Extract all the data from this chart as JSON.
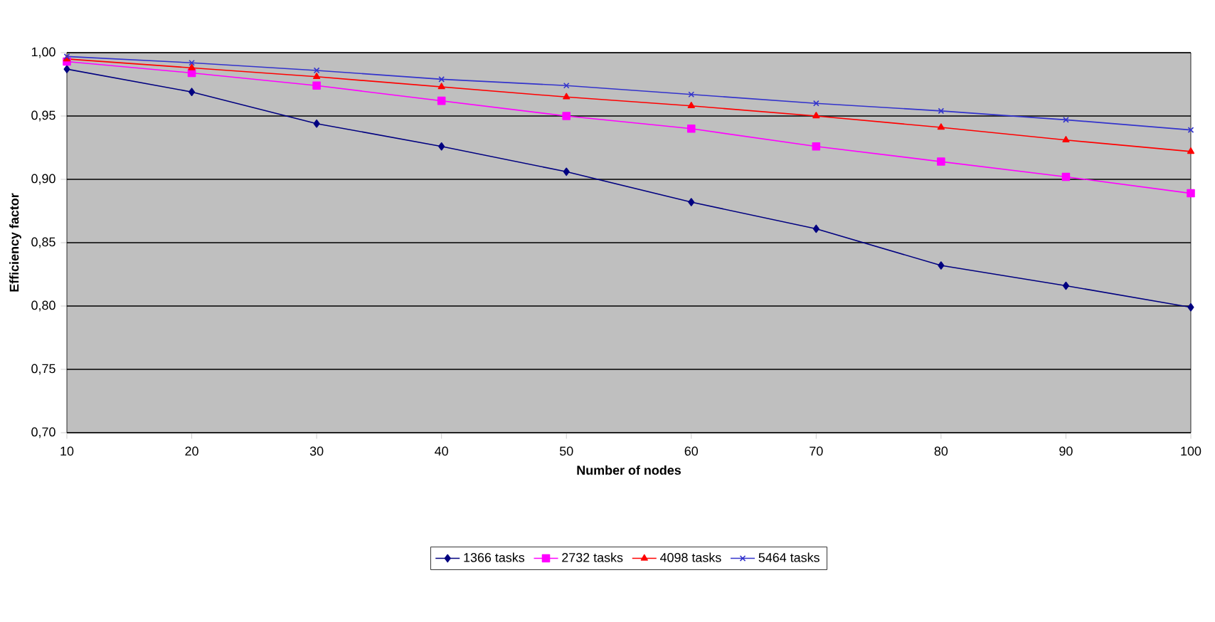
{
  "chart_data": {
    "type": "line",
    "xlabel": "Number of nodes",
    "ylabel": "Efficiency factor",
    "x": [
      10,
      20,
      30,
      40,
      50,
      60,
      70,
      80,
      90,
      100
    ],
    "series": [
      {
        "name": "1366 tasks",
        "color": "#000080",
        "marker": "diamond",
        "values": [
          0.987,
          0.969,
          0.944,
          0.926,
          0.906,
          0.882,
          0.861,
          0.832,
          0.816,
          0.799
        ]
      },
      {
        "name": "2732 tasks",
        "color": "#ff00ff",
        "marker": "square",
        "values": [
          0.993,
          0.984,
          0.974,
          0.962,
          0.95,
          0.94,
          0.926,
          0.914,
          0.902,
          0.889
        ]
      },
      {
        "name": "4098 tasks",
        "color": "#ff0000",
        "marker": "triangle",
        "values": [
          0.995,
          0.988,
          0.981,
          0.973,
          0.965,
          0.958,
          0.95,
          0.941,
          0.931,
          0.922
        ]
      },
      {
        "name": "5464 tasks",
        "color": "#3333cc",
        "marker": "cross",
        "values": [
          0.997,
          0.992,
          0.986,
          0.979,
          0.974,
          0.967,
          0.96,
          0.954,
          0.947,
          0.939
        ]
      }
    ],
    "xlim": [
      10,
      100
    ],
    "xticks": [
      10,
      20,
      30,
      40,
      50,
      60,
      70,
      80,
      90,
      100
    ],
    "ylim": [
      0.7,
      1.0
    ],
    "yticks": [
      {
        "value": 0.7,
        "label": "0,70"
      },
      {
        "value": 0.75,
        "label": "0,75"
      },
      {
        "value": 0.8,
        "label": "0,80"
      },
      {
        "value": 0.85,
        "label": "0,85"
      },
      {
        "value": 0.9,
        "label": "0,90"
      },
      {
        "value": 0.95,
        "label": "0,95"
      },
      {
        "value": 1.0,
        "label": "1,00"
      }
    ],
    "grid": "y",
    "legend": "bottom",
    "line_style": "solid"
  }
}
